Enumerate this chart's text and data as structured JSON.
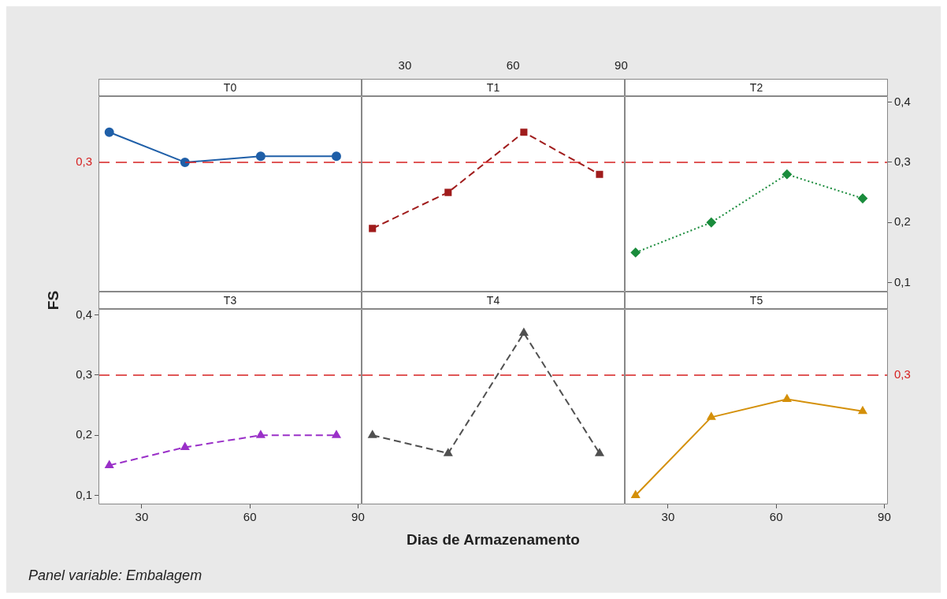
{
  "chart_data": [
    {
      "type": "line",
      "title": "T0",
      "x": [
        21,
        42,
        63,
        84
      ],
      "series": [
        {
          "values": [
            0.35,
            0.3,
            0.31,
            0.31
          ],
          "color": "#1f5fa8"
        }
      ],
      "marker": "circle",
      "line_style": "solid",
      "xlim": [
        18,
        91
      ],
      "ylim": [
        0.085,
        0.41
      ],
      "tick_labels": false,
      "ref_lines": [
        {
          "axis": "y",
          "value": 0.3,
          "label": "0,3",
          "color": "#d62020",
          "line_style": "dashed"
        }
      ]
    },
    {
      "type": "line",
      "title": "T1",
      "x": [
        21,
        42,
        63,
        84
      ],
      "series": [
        {
          "values": [
            0.19,
            0.25,
            0.35,
            0.28
          ],
          "color": "#a01c1c"
        }
      ],
      "marker": "square",
      "line_style": "dashed",
      "xlim": [
        18,
        91
      ],
      "xticks": [
        30,
        60,
        90
      ],
      "ylim": [
        0.085,
        0.41
      ],
      "tick_labels": "x",
      "ref_lines": [
        {
          "axis": "y",
          "value": 0.3,
          "color": "#d62020",
          "line_style": "dashed"
        }
      ]
    },
    {
      "type": "line",
      "title": "T2",
      "x": [
        21,
        42,
        63,
        84
      ],
      "series": [
        {
          "values": [
            0.15,
            0.2,
            0.28,
            0.24
          ],
          "color": "#1a8c3c",
          "axis": "y2"
        }
      ],
      "marker": "diamond",
      "line_style": "dotted",
      "xlim": [
        18,
        91
      ],
      "y2lim": [
        0.085,
        0.41
      ],
      "y2ticks": [
        {
          "value": 0.1,
          "label": "0,1"
        },
        {
          "value": 0.2,
          "label": "0,2"
        },
        {
          "value": 0.3,
          "label": "0,3"
        },
        {
          "value": 0.4,
          "label": "0,4"
        }
      ],
      "tick_labels": "y",
      "ref_lines": [
        {
          "axis": "y2",
          "value": 0.3,
          "color": "#d62020",
          "line_style": "dashed"
        }
      ]
    },
    {
      "type": "line",
      "title": "T3",
      "ylabel": "FS",
      "annotations": [
        "Panel variable: Embalagem"
      ],
      "x": [
        21,
        42,
        63,
        84
      ],
      "series": [
        {
          "values": [
            0.15,
            0.18,
            0.2,
            0.2
          ],
          "color": "#9a30c8"
        }
      ],
      "marker": "triangle",
      "line_style": "dashed",
      "xlim": [
        18,
        91
      ],
      "xticks": [
        30,
        60,
        90
      ],
      "ylim": [
        0.085,
        0.41
      ],
      "yticks": [
        {
          "value": 0.1,
          "label": "0,1"
        },
        {
          "value": 0.2,
          "label": "0,2"
        },
        {
          "value": 0.3,
          "label": "0,3"
        },
        {
          "value": 0.4,
          "label": "0,4"
        }
      ],
      "ref_lines": [
        {
          "axis": "y",
          "value": 0.3,
          "color": "#d62020",
          "line_style": "dashed"
        }
      ]
    },
    {
      "type": "line",
      "title": "T4",
      "xlabel": "Dias de Armazenamento",
      "x": [
        21,
        42,
        63,
        84
      ],
      "series": [
        {
          "values": [
            0.2,
            0.17,
            0.37,
            0.17
          ],
          "color": "#505050"
        }
      ],
      "marker": "triangle",
      "line_style": "dashed",
      "xlim": [
        18,
        91
      ],
      "ylim": [
        0.085,
        0.41
      ],
      "tick_labels": false,
      "ref_lines": [
        {
          "axis": "y",
          "value": 0.3,
          "color": "#d62020",
          "line_style": "dashed"
        }
      ]
    },
    {
      "type": "line",
      "title": "T5",
      "x": [
        21,
        42,
        63,
        84
      ],
      "series": [
        {
          "values": [
            0.1,
            0.23,
            0.26,
            0.24
          ],
          "color": "#d4900a"
        }
      ],
      "marker": "triangle",
      "line_style": "solid",
      "xlim": [
        18,
        91
      ],
      "xticks": [
        30,
        60,
        90
      ],
      "ylim": [
        0.085,
        0.41
      ],
      "tick_labels": "x",
      "ref_lines": [
        {
          "axis": "y",
          "value": 0.3,
          "label": "0,3",
          "color": "#d62020",
          "line_style": "dashed"
        }
      ]
    }
  ]
}
